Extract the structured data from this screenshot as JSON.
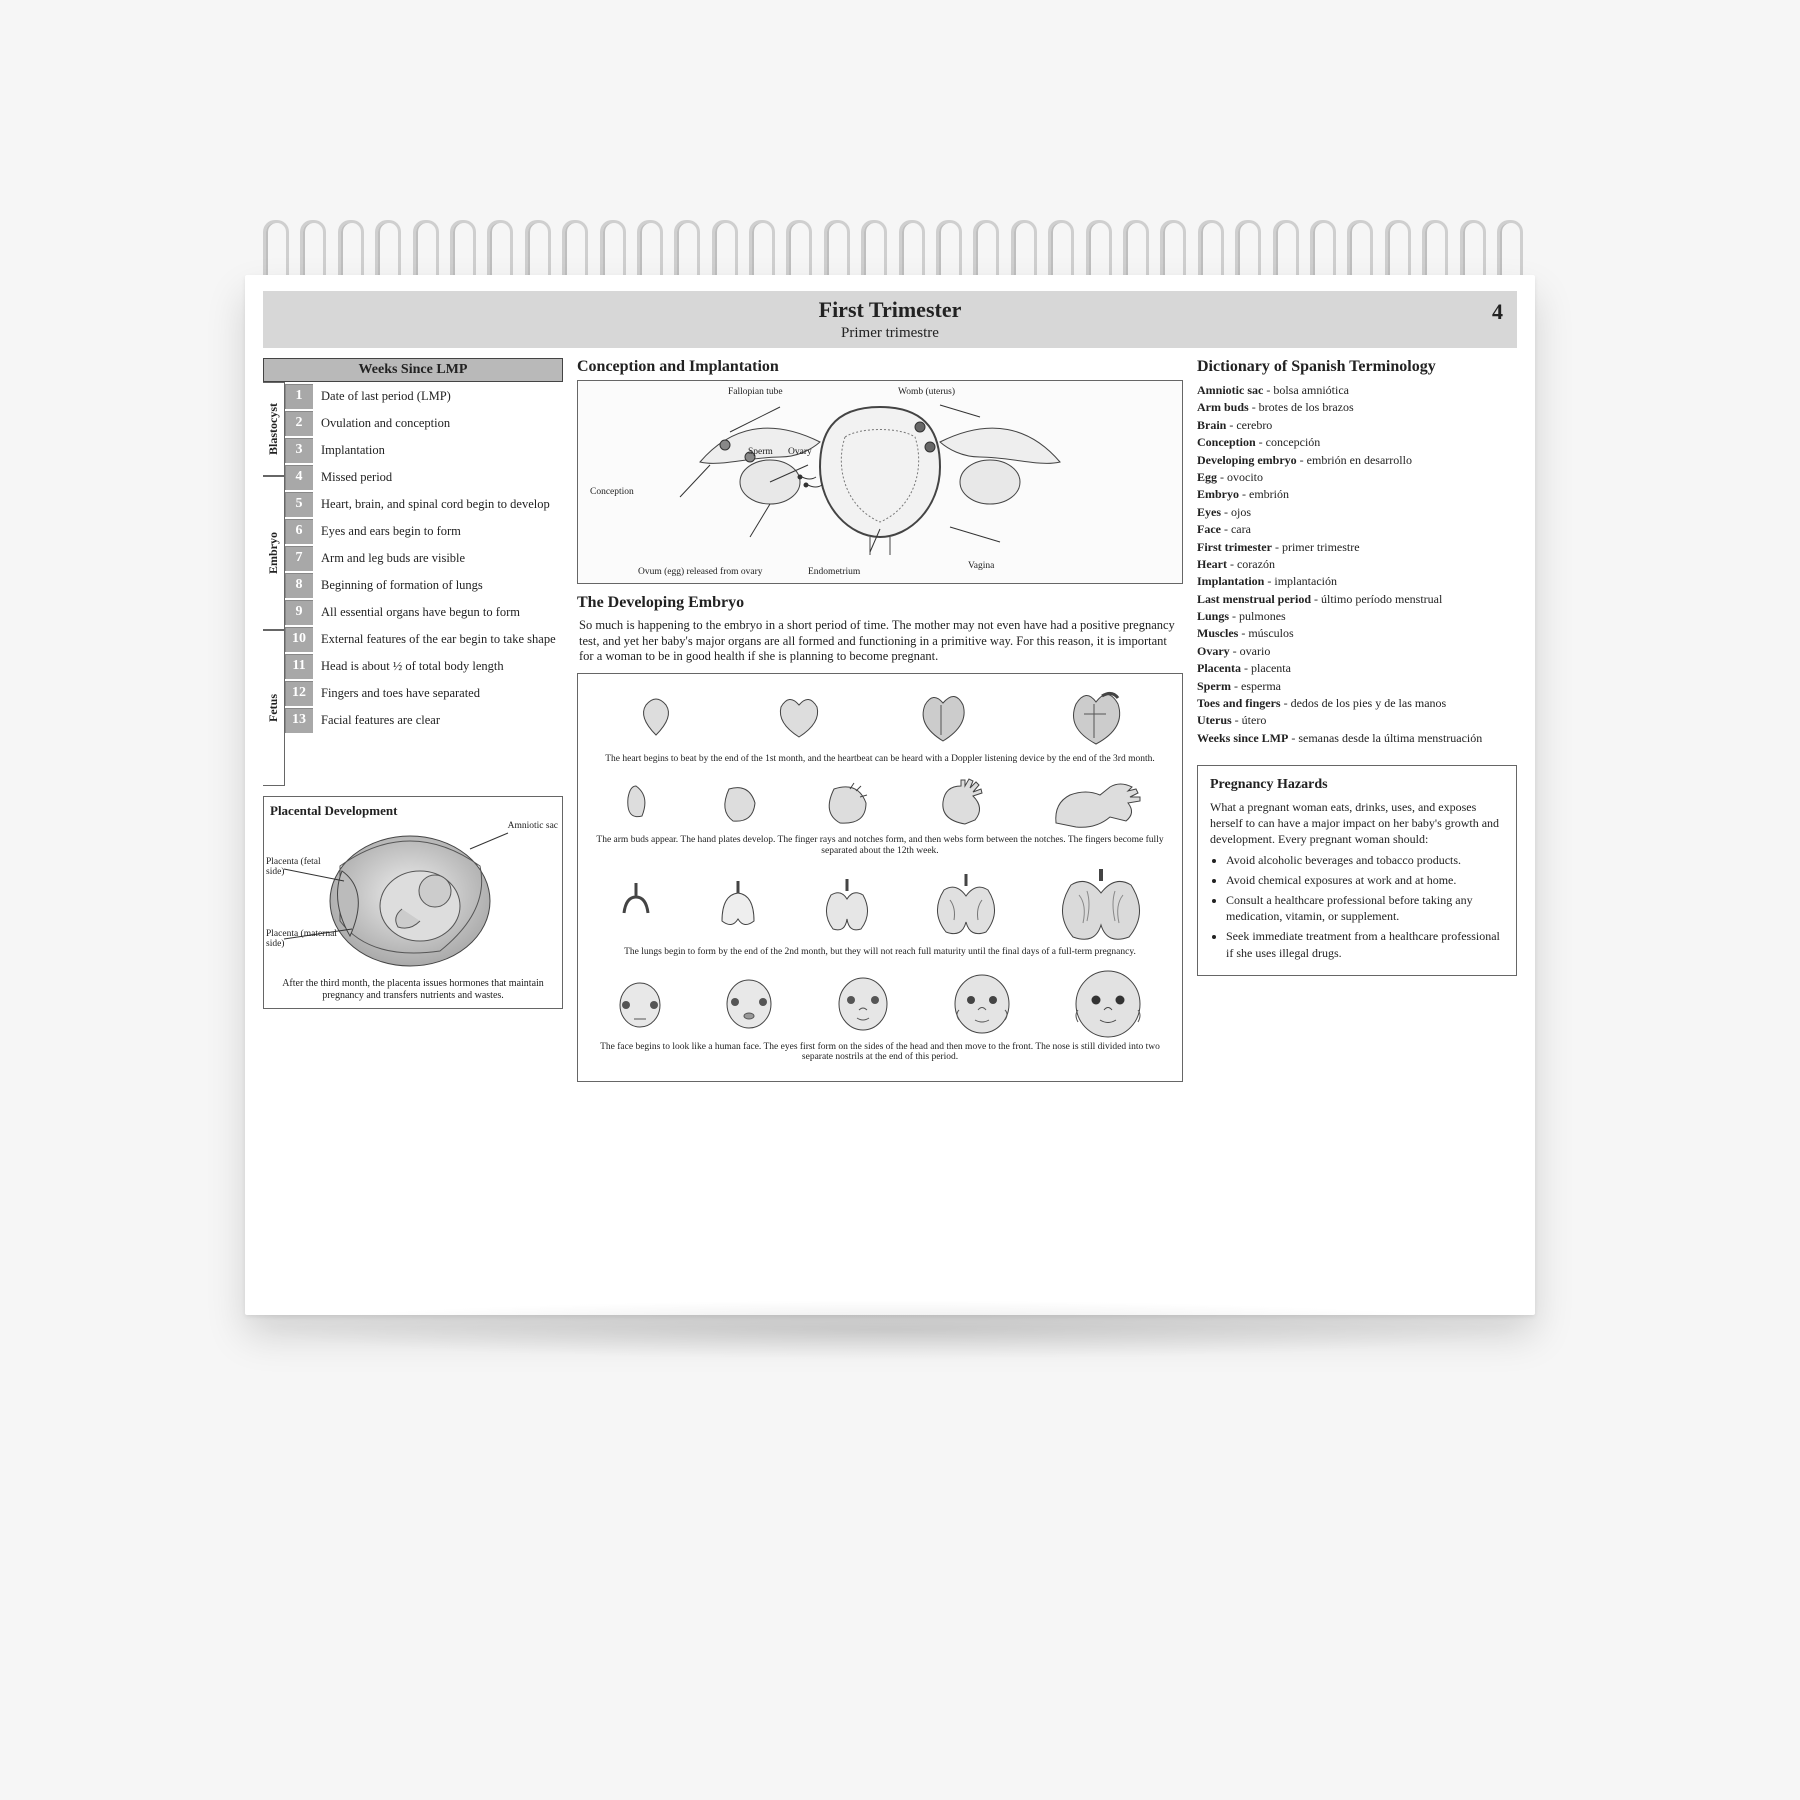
{
  "page": {
    "title": "First Trimester",
    "subtitle": "Primer trimestre",
    "number": "4"
  },
  "weeksHeader": "Weeks Since LMP",
  "stages": [
    {
      "label": "Blastocyst",
      "heightPx": 88
    },
    {
      "label": "Embryo",
      "heightPx": 148
    },
    {
      "label": "Fetus",
      "heightPx": 150
    }
  ],
  "weeks": [
    {
      "n": "1",
      "text": "Date of last period (LMP)"
    },
    {
      "n": "2",
      "text": "Ovulation and conception"
    },
    {
      "n": "3",
      "text": "Implantation"
    },
    {
      "n": "4",
      "text": "Missed period"
    },
    {
      "n": "5",
      "text": "Heart, brain, and spinal cord begin to develop"
    },
    {
      "n": "6",
      "text": "Eyes and ears begin to form"
    },
    {
      "n": "7",
      "text": "Arm and leg buds are visible"
    },
    {
      "n": "8",
      "text": "Beginning of formation of lungs"
    },
    {
      "n": "9",
      "text": "All essential organs have begun to form"
    },
    {
      "n": "10",
      "text": "External features of the ear begin to take shape"
    },
    {
      "n": "11",
      "text": "Head is about ½ of total body length"
    },
    {
      "n": "12",
      "text": "Fingers and toes have separated"
    },
    {
      "n": "13",
      "text": "Facial features are clear"
    }
  ],
  "placental": {
    "title": "Placental Development",
    "labels": {
      "amniotic": "Amniotic sac",
      "fetal": "Placenta (fetal side)",
      "maternal": "Placenta (maternal side)"
    },
    "caption": "After the third month, the placenta issues hormones that maintain pregnancy and transfers nutrients and wastes."
  },
  "conception": {
    "title": "Conception and Implantation",
    "labels": {
      "fallopian": "Fallopian tube",
      "womb": "Womb (uterus)",
      "sperm": "Sperm",
      "ovary": "Ovary",
      "conception": "Conception",
      "ovum": "Ovum (egg) released from ovary",
      "endometrium": "Endometrium",
      "vagina": "Vagina"
    }
  },
  "developing": {
    "title": "The Developing Embryo",
    "body": "So much is happening to the embryo in a short period of time. The mother may not even have had a positive pregnancy test, and yet her baby's major organs are all formed and functioning in a primitive way. For this reason, it is important for a woman to be in good health if she is planning to become pregnant.",
    "captions": [
      "The heart begins to beat by the end of the 1st month, and the heartbeat can be heard with a Doppler listening device by the end of the 3rd month.",
      "The arm buds appear. The hand plates develop. The finger rays and notches form, and then webs form between the notches. The fingers become fully separated about the 12th week.",
      "The lungs begin to form by the end of the 2nd month, but they will not reach full maturity until the final days of a full-term pregnancy.",
      "The face begins to look like a human face. The eyes first form on the sides of the head and then move to the front. The nose is still divided into two separate nostrils at the end of this period."
    ]
  },
  "dictionary": {
    "title": "Dictionary of Spanish Terminology",
    "entries": [
      {
        "en": "Amniotic sac",
        "es": "bolsa amniótica"
      },
      {
        "en": "Arm buds",
        "es": "brotes de los brazos"
      },
      {
        "en": "Brain",
        "es": "cerebro"
      },
      {
        "en": "Conception",
        "es": "concepción"
      },
      {
        "en": "Developing embryo",
        "es": "embrión en desarrollo"
      },
      {
        "en": "Egg",
        "es": "ovocito"
      },
      {
        "en": "Embryo",
        "es": "embrión"
      },
      {
        "en": "Eyes",
        "es": "ojos"
      },
      {
        "en": "Face",
        "es": "cara"
      },
      {
        "en": "First trimester",
        "es": "primer trimestre"
      },
      {
        "en": "Heart",
        "es": "corazón"
      },
      {
        "en": "Implantation",
        "es": "implantación"
      },
      {
        "en": "Last menstrual period",
        "es": "último período menstrual"
      },
      {
        "en": "Lungs",
        "es": "pulmones"
      },
      {
        "en": "Muscles",
        "es": "músculos"
      },
      {
        "en": "Ovary",
        "es": "ovario"
      },
      {
        "en": "Placenta",
        "es": "placenta"
      },
      {
        "en": "Sperm",
        "es": "esperma"
      },
      {
        "en": "Toes and fingers",
        "es": "dedos de los pies y de las manos"
      },
      {
        "en": "Uterus",
        "es": "útero"
      },
      {
        "en": "Weeks since LMP",
        "es": "semanas desde la última menstruación"
      }
    ]
  },
  "hazards": {
    "title": "Pregnancy Hazards",
    "intro": "What a pregnant woman eats, drinks, uses, and exposes herself to can have a major impact on her baby's growth and development. Every pregnant woman should:",
    "items": [
      "Avoid alcoholic beverages and tobacco products.",
      "Avoid chemical exposures at work and at home.",
      "Consult a healthcare professional before taking any medication, vitamin, or supplement.",
      "Seek immediate treatment from a healthcare professional if she uses illegal drugs."
    ]
  },
  "style": {
    "coils": 34,
    "colors": {
      "titlebarBg": "#d7d7d7",
      "weekBox": "#a8a8a8",
      "border": "#666666",
      "pageBg": "#ffffff",
      "stageBg": "#f6f6f6"
    }
  }
}
